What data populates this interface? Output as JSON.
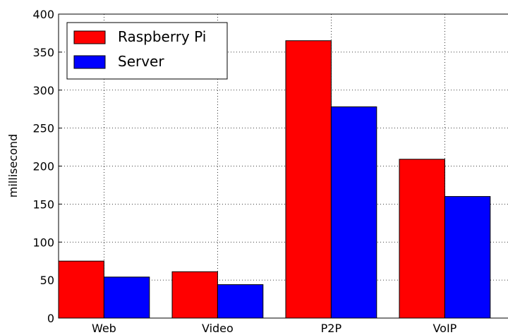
{
  "chart_data": {
    "type": "bar",
    "y_label": "millisecond",
    "categories": [
      "Web",
      "Video",
      "P2P",
      "VoIP"
    ],
    "series": [
      {
        "name": "Raspberry Pi",
        "color": "#ff0000",
        "values": [
          75,
          61,
          365,
          209
        ]
      },
      {
        "name": "Server",
        "color": "#0000ff",
        "values": [
          54,
          44,
          278,
          160
        ]
      }
    ],
    "ylim": [
      0,
      400
    ],
    "yticks": [
      0,
      50,
      100,
      150,
      200,
      250,
      300,
      350,
      400
    ],
    "grid": true,
    "legend": "upper left"
  }
}
